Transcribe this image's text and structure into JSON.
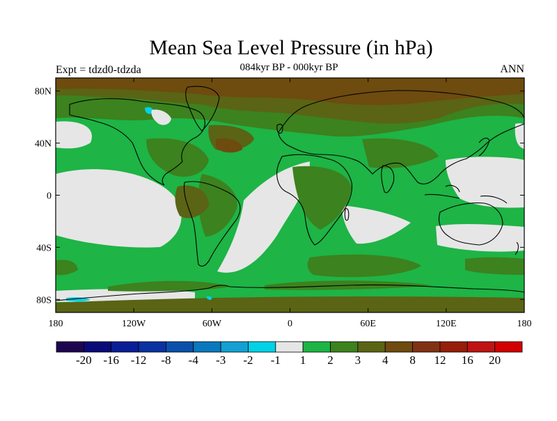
{
  "title": "Mean Sea Level Pressure (in hPa)",
  "subtitle": "084kyr BP - 000kyr BP",
  "left_label": "Expt = tdzd0-tdzda",
  "right_label": "ANN",
  "lat_ticks": [
    "80N",
    "40N",
    "0",
    "40S",
    "80S"
  ],
  "lon_ticks": [
    "180",
    "120W",
    "60W",
    "0",
    "60E",
    "120E",
    "180"
  ],
  "colorbar": {
    "colors": [
      "#1e0550",
      "#0a0a78",
      "#0a1e96",
      "#0a32a0",
      "#0a50aa",
      "#0a78be",
      "#14a0d2",
      "#00d2e6",
      "#e6e6e6",
      "#1eb446",
      "#3c821e",
      "#5a6414",
      "#6e4b0f",
      "#823214",
      "#961e0a",
      "#be1414",
      "#d20000"
    ],
    "labels": [
      "-20",
      "-16",
      "-12",
      "-8",
      "-4",
      "-3",
      "-2",
      "-1",
      "1",
      "2",
      "3",
      "4",
      "8",
      "12",
      "16",
      "20"
    ]
  }
}
